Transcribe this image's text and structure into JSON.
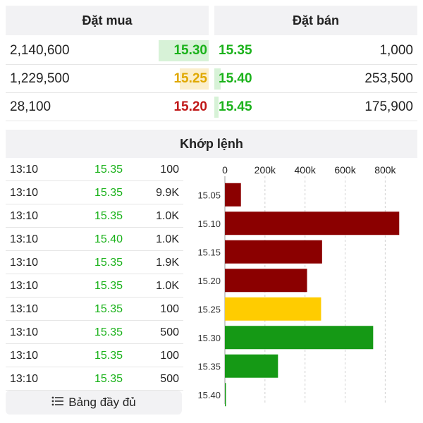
{
  "colors": {
    "up": "#1bb21b",
    "ref": "#e0a800",
    "down": "#c01818",
    "buy_bar_up": "#d7f2d7",
    "buy_bar_ref": "#fbeecb",
    "sell_bar": "#d7f2d7"
  },
  "order_book": {
    "buy_title": "Đặt mua",
    "sell_title": "Đặt bán",
    "rows": [
      {
        "buy_volume": "2,140,600",
        "buy_price": "15.30",
        "buy_color": "up",
        "buy_level": 0.49,
        "sell_price": "15.35",
        "sell_volume": "1,000",
        "sell_color": "up",
        "sell_level": 0.0
      },
      {
        "buy_volume": "1,229,500",
        "buy_price": "15.25",
        "buy_color": "ref",
        "buy_level": 0.28,
        "sell_price": "15.40",
        "sell_volume": "253,500",
        "sell_color": "up",
        "sell_level": 0.06
      },
      {
        "buy_volume": "28,100",
        "buy_price": "15.20",
        "buy_color": "down",
        "buy_level": 0.0,
        "sell_price": "15.45",
        "sell_volume": "175,900",
        "sell_color": "up",
        "sell_level": 0.04
      }
    ]
  },
  "matching": {
    "title": "Khớp lệnh",
    "trades": [
      {
        "time": "13:10",
        "price": "15.35",
        "volume": "100"
      },
      {
        "time": "13:10",
        "price": "15.35",
        "volume": "9.9K"
      },
      {
        "time": "13:10",
        "price": "15.35",
        "volume": "1.0K"
      },
      {
        "time": "13:10",
        "price": "15.40",
        "volume": "1.0K"
      },
      {
        "time": "13:10",
        "price": "15.35",
        "volume": "1.9K"
      },
      {
        "time": "13:10",
        "price": "15.35",
        "volume": "1.0K"
      },
      {
        "time": "13:10",
        "price": "15.35",
        "volume": "100"
      },
      {
        "time": "13:10",
        "price": "15.35",
        "volume": "500"
      },
      {
        "time": "13:10",
        "price": "15.35",
        "volume": "100"
      },
      {
        "time": "13:10",
        "price": "15.35",
        "volume": "500"
      }
    ]
  },
  "full_board_button": {
    "label": "Bảng đầy đủ",
    "icon": "list-icon"
  },
  "chart_data": {
    "type": "bar",
    "orientation": "horizontal",
    "categories": [
      "15.05",
      "15.10",
      "15.15",
      "15.20",
      "15.25",
      "15.30",
      "15.35",
      "15.40"
    ],
    "values": [
      80000,
      870000,
      485000,
      410000,
      480000,
      740000,
      265000,
      5000
    ],
    "bar_colors": [
      "#8b0000",
      "#8b0000",
      "#8b0000",
      "#8b0000",
      "#ffcc00",
      "#159915",
      "#159915",
      "#159915"
    ],
    "x_ticks": [
      {
        "value": 0,
        "label": "0"
      },
      {
        "value": 200000,
        "label": "200k"
      },
      {
        "value": 400000,
        "label": "400k"
      },
      {
        "value": 600000,
        "label": "600k"
      },
      {
        "value": 800000,
        "label": "800k"
      }
    ],
    "xlim": [
      0,
      950000
    ],
    "grid": true
  }
}
